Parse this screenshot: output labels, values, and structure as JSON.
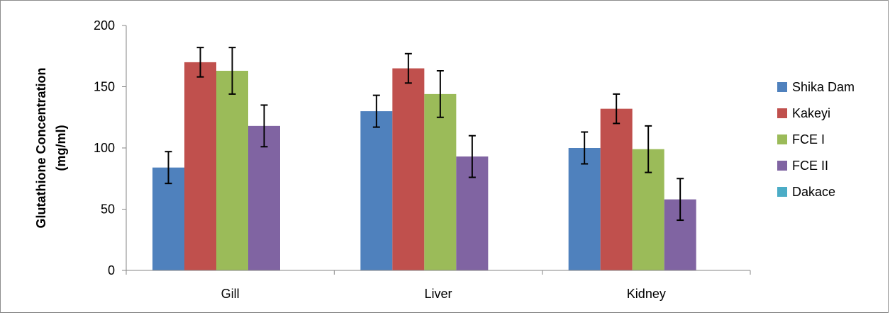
{
  "chart_data": {
    "type": "bar",
    "categories": [
      "Gill",
      "Liver",
      "Kidney"
    ],
    "series": [
      {
        "name": "Shika Dam",
        "color": "#4f81bd",
        "values": [
          84,
          130,
          100
        ],
        "errors": [
          13,
          13,
          13
        ]
      },
      {
        "name": "Kakeyi",
        "color": "#c0504d",
        "values": [
          170,
          165,
          132
        ],
        "errors": [
          12,
          12,
          12
        ]
      },
      {
        "name": "FCE I",
        "color": "#9bbb59",
        "values": [
          163,
          144,
          99
        ],
        "errors": [
          19,
          19,
          19
        ]
      },
      {
        "name": "FCE II",
        "color": "#8064a2",
        "values": [
          118,
          93,
          58
        ],
        "errors": [
          17,
          17,
          17
        ]
      },
      {
        "name": "Dakace",
        "color": "#4bacc6",
        "values": [
          0,
          0,
          0
        ],
        "errors": [
          0,
          0,
          0
        ]
      }
    ],
    "ylabel_line1": "Glutathione Concentration",
    "ylabel_line2": "(mg/ml)",
    "ylim": [
      0,
      200
    ],
    "yticks": [
      "0",
      "50",
      "100",
      "150",
      "200"
    ],
    "legend_position": "right",
    "grid": false
  }
}
